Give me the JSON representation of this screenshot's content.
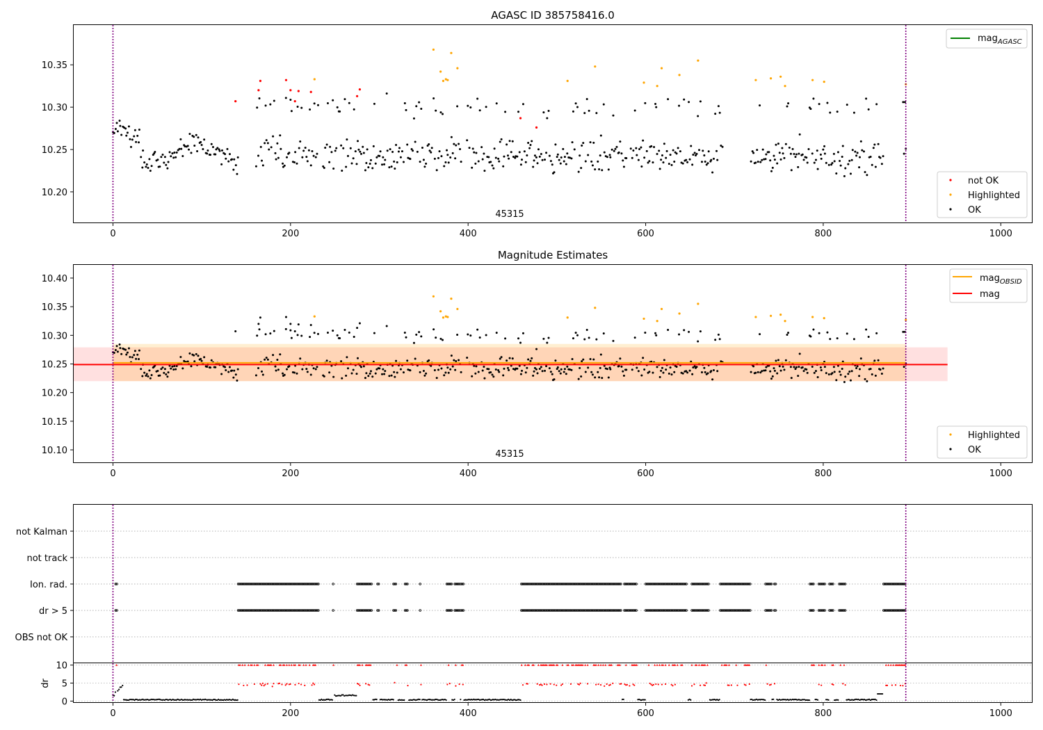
{
  "chart_data": [
    {
      "type": "scatter",
      "title": "AGASC ID 385758416.0",
      "xlim": [
        -45,
        1035
      ],
      "ylim": [
        10.163,
        10.397
      ],
      "xticks": [
        0,
        200,
        400,
        600,
        800,
        1000
      ],
      "yticks": [
        10.2,
        10.25,
        10.3,
        10.35
      ],
      "ytick_labels": [
        "10.20",
        "10.25",
        "10.30",
        "10.35"
      ],
      "vlines": [
        0,
        893
      ],
      "obsid_label": {
        "text": "45315",
        "x": 446
      },
      "legends": [
        {
          "position": "top-right",
          "entries": [
            {
              "label": "mag",
              "sub": "AGASC",
              "type": "line",
              "color": "#008000"
            }
          ]
        },
        {
          "position": "bottom-right",
          "entries": [
            {
              "label": "not OK",
              "type": "marker",
              "color": "#ff0000"
            },
            {
              "label": "Highlighted",
              "type": "marker",
              "color": "#ffa500"
            },
            {
              "label": "OK",
              "type": "marker",
              "color": "#000000"
            }
          ]
        }
      ],
      "series": [
        {
          "name": "not OK",
          "color": "#ff0000",
          "points": [
            [
              138,
              10.307
            ],
            [
              164,
              10.32
            ],
            [
              166,
              10.331
            ],
            [
              195,
              10.332
            ],
            [
              200,
              10.32
            ],
            [
              205,
              10.307
            ],
            [
              209,
              10.319
            ],
            [
              223,
              10.318
            ],
            [
              275,
              10.313
            ],
            [
              278,
              10.321
            ],
            [
              459,
              10.287
            ],
            [
              477,
              10.276
            ]
          ]
        },
        {
          "name": "Highlighted",
          "color": "#ffa500",
          "points": [
            [
              227,
              10.333
            ],
            [
              361,
              10.368
            ],
            [
              369,
              10.342
            ],
            [
              372,
              10.331
            ],
            [
              375,
              10.333
            ],
            [
              377,
              10.332
            ],
            [
              381,
              10.364
            ],
            [
              388,
              10.346
            ],
            [
              512,
              10.331
            ],
            [
              543,
              10.348
            ],
            [
              598,
              10.329
            ],
            [
              613,
              10.325
            ],
            [
              618,
              10.346
            ],
            [
              638,
              10.338
            ],
            [
              659,
              10.355
            ],
            [
              724,
              10.332
            ],
            [
              741,
              10.334
            ],
            [
              752,
              10.336
            ],
            [
              757,
              10.325
            ],
            [
              788,
              10.332
            ],
            [
              801,
              10.33
            ],
            [
              893,
              10.327
            ]
          ]
        }
      ],
      "ok_band": {
        "x_range": [
          0,
          868
        ],
        "y_center": 10.242,
        "y_spread": 0.028,
        "upper_cluster_y": 10.3,
        "upper_cluster_spread": 0.018
      }
    },
    {
      "type": "scatter",
      "title": "Magnitude Estimates",
      "xlim": [
        -45,
        1035
      ],
      "ylim": [
        10.077,
        10.423
      ],
      "xticks": [
        0,
        200,
        400,
        600,
        800,
        1000
      ],
      "yticks": [
        10.1,
        10.15,
        10.2,
        10.25,
        10.3,
        10.35,
        10.4
      ],
      "ytick_labels": [
        "10.10",
        "10.15",
        "10.20",
        "10.25",
        "10.30",
        "10.35",
        "10.40"
      ],
      "vlines": [
        0,
        893
      ],
      "obsid_label": {
        "text": "45315",
        "x": 446
      },
      "mag_line": {
        "y": 10.249,
        "x_range": [
          -45,
          940
        ],
        "band": [
          10.22,
          10.279
        ],
        "color": "#ff0000"
      },
      "mag_obsid_line": {
        "y": 10.252,
        "x_range": [
          0,
          893
        ],
        "band": [
          10.22,
          10.285
        ],
        "color": "#ffa500"
      },
      "legends": [
        {
          "position": "top-right",
          "entries": [
            {
              "label": "mag",
              "sub": "OBSID",
              "type": "line",
              "color": "#ffa500"
            },
            {
              "label": "mag",
              "sub": "",
              "type": "line",
              "color": "#ff0000"
            }
          ]
        },
        {
          "position": "bottom-right",
          "entries": [
            {
              "label": "Highlighted",
              "type": "marker",
              "color": "#ffa500"
            },
            {
              "label": "OK",
              "type": "marker",
              "color": "#000000"
            }
          ]
        }
      ]
    },
    {
      "type": "scatter",
      "xlim": [
        -45,
        1035
      ],
      "categories": [
        "not Kalman",
        "not track",
        "Ion. rad.",
        "dr > 5",
        "OBS not OK"
      ],
      "flag_rows": [
        "Ion. rad.",
        "dr > 5"
      ],
      "flag_segments": [
        [
          3,
          5
        ],
        [
          141,
          232
        ],
        [
          248,
          249
        ],
        [
          275,
          292
        ],
        [
          298,
          300
        ],
        [
          316,
          320
        ],
        [
          329,
          333
        ],
        [
          346,
          347
        ],
        [
          376,
          382
        ],
        [
          385,
          391
        ],
        [
          392,
          395
        ],
        [
          460,
          573
        ],
        [
          576,
          590
        ],
        [
          600,
          647
        ],
        [
          652,
          672
        ],
        [
          684,
          718
        ],
        [
          735,
          742
        ],
        [
          745,
          747
        ],
        [
          785,
          790
        ],
        [
          795,
          803
        ],
        [
          807,
          812
        ],
        [
          818,
          825
        ],
        [
          868,
          893
        ]
      ],
      "vlines": [
        0,
        893
      ]
    },
    {
      "type": "scatter",
      "xlim": [
        -45,
        1035
      ],
      "ylim": [
        -0.5,
        10.5
      ],
      "ylabel": "dr",
      "yticks": [
        0,
        5,
        10
      ],
      "ytick_labels": [
        "0",
        "5",
        "10"
      ],
      "xticks": [
        0,
        200,
        400,
        600,
        800,
        1000
      ],
      "vlines": [
        0,
        893
      ]
    }
  ]
}
